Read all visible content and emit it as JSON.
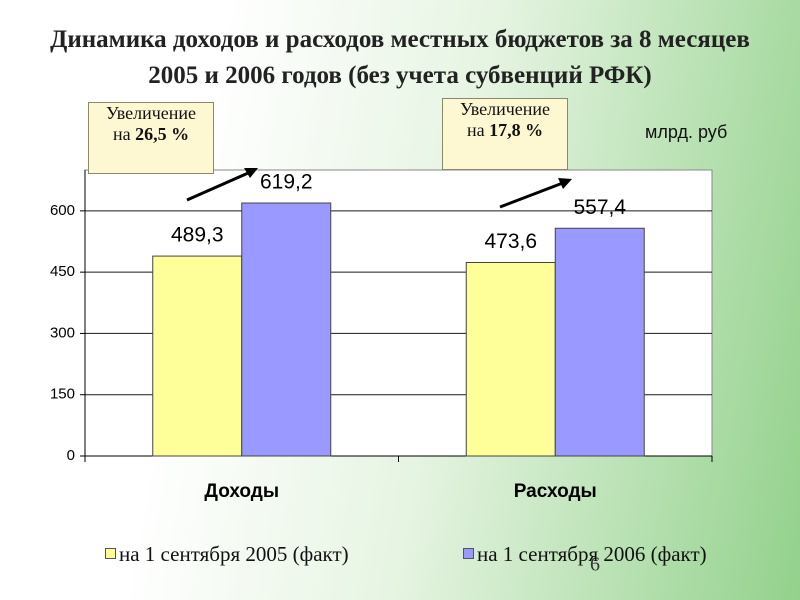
{
  "chart_data": {
    "type": "bar",
    "title": "Динамика доходов и расходов местных бюджетов за 8 месяцев 2005 и 2006 годов (без учета субвенций РФК)",
    "unit_label": "млрд. руб",
    "categories": [
      "Доходы",
      "Расходы"
    ],
    "series": [
      {
        "name": "на 1 сентября 2005 (факт)",
        "color": "#ffff99",
        "values": [
          489.3,
          473.6
        ],
        "value_labels": [
          "489,3",
          "473,6"
        ]
      },
      {
        "name": "на 1 сентября 2006 (факт)",
        "color": "#9999ff",
        "values": [
          619.2,
          557.4
        ],
        "value_labels": [
          "619,2",
          "557,4"
        ]
      }
    ],
    "ylim": [
      0,
      700
    ],
    "yticks": [
      0,
      150,
      300,
      450,
      600
    ],
    "grid": true,
    "annotations": [
      {
        "label": "Увеличение",
        "prefix": "на",
        "value": "26,5 %"
      },
      {
        "label": "Увеличение",
        "prefix": "на",
        "value": "17,8 %"
      }
    ],
    "page_number": "6"
  }
}
